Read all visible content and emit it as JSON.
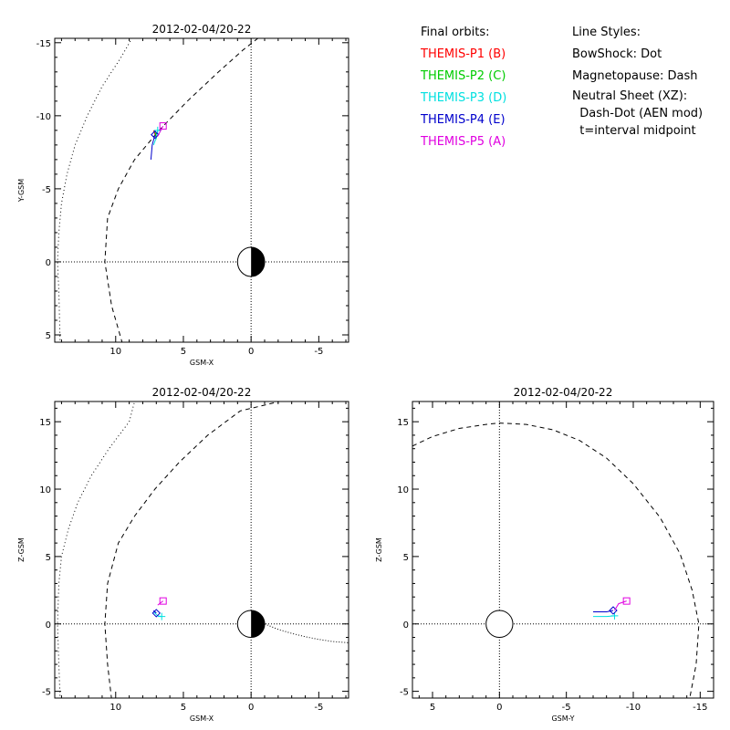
{
  "legend": {
    "orbits_title": "Final orbits:",
    "probes": [
      {
        "label": "THEMIS-P1 (B)",
        "color": "#ff0000"
      },
      {
        "label": "THEMIS-P2 (C)",
        "color": "#00cc00"
      },
      {
        "label": "THEMIS-P3 (D)",
        "color": "#00e0e0"
      },
      {
        "label": "THEMIS-P4 (E)",
        "color": "#0000cc"
      },
      {
        "label": "THEMIS-P5 (A)",
        "color": "#e000e0"
      }
    ],
    "styles_title": "Line Styles:",
    "styles": [
      "BowShock: Dot",
      "Magnetopause: Dash",
      "Neutral Sheet (XZ):",
      "  Dash-Dot (AEN mod)",
      "  t=interval midpoint"
    ]
  },
  "chart_data": [
    {
      "id": "xy",
      "type": "line",
      "title": "2012-02-04/20-22",
      "xlabel": "GSM-X",
      "ylabel": "Y-GSM",
      "xlim": [
        14.5,
        -7.2
      ],
      "ylim": [
        5.5,
        -15.3
      ],
      "xticks": [
        10,
        5,
        0,
        -5
      ],
      "yticks": [
        5,
        0,
        -5,
        -10,
        -15
      ],
      "bow_shock": [
        [
          14.1,
          5.6
        ],
        [
          14.2,
          2
        ],
        [
          14.3,
          0
        ],
        [
          14.2,
          -2
        ],
        [
          14.0,
          -4
        ],
        [
          13.6,
          -6
        ],
        [
          13.0,
          -8
        ],
        [
          12.1,
          -10
        ],
        [
          11.0,
          -12
        ],
        [
          9.6,
          -14
        ],
        [
          8.8,
          -15.3
        ]
      ],
      "magnetopause": [
        [
          9.5,
          5.6
        ],
        [
          10.3,
          3
        ],
        [
          10.8,
          0
        ],
        [
          10.6,
          -3
        ],
        [
          9.8,
          -5
        ],
        [
          8.6,
          -7
        ],
        [
          6.8,
          -9
        ],
        [
          4.7,
          -11
        ],
        [
          2.4,
          -13
        ],
        [
          0.6,
          -14.5
        ],
        [
          -0.5,
          -15.3
        ]
      ],
      "earth_radius": 1,
      "series": [
        {
          "name": "THEMIS-P1 (B)",
          "color": "#ff0000",
          "points": [
            [
              7.0,
              -8.5
            ],
            [
              7.2,
              -9.0
            ]
          ],
          "marker": "none"
        },
        {
          "name": "THEMIS-P2 (C)",
          "color": "#00cc00",
          "points": [
            [
              7.0,
              -8.4
            ],
            [
              7.1,
              -9.0
            ]
          ],
          "marker": "none"
        },
        {
          "name": "THEMIS-P3 (D)",
          "color": "#00e0e0",
          "points": [
            [
              7.2,
              -8.0
            ],
            [
              7.0,
              -8.5
            ],
            [
              6.9,
              -9.0
            ]
          ],
          "marker": "cross"
        },
        {
          "name": "THEMIS-P4 (E)",
          "color": "#0000cc",
          "points": [
            [
              7.4,
              -7.0
            ],
            [
              7.3,
              -8.0
            ],
            [
              7.1,
              -8.7
            ]
          ],
          "marker": "diamond"
        },
        {
          "name": "THEMIS-P5 (A)",
          "color": "#e000e0",
          "points": [
            [
              6.9,
              -8.6
            ],
            [
              6.5,
              -9.3
            ]
          ],
          "marker": "square"
        }
      ]
    },
    {
      "id": "xz",
      "type": "line",
      "title": "2012-02-04/20-22",
      "xlabel": "GSM-X",
      "ylabel": "Z-GSM",
      "xlim": [
        14.5,
        -7.2
      ],
      "ylim": [
        -5.5,
        16.5
      ],
      "xticks": [
        10,
        5,
        0,
        -5
      ],
      "yticks": [
        -5,
        0,
        5,
        10,
        15
      ],
      "bow_shock": [
        [
          14.1,
          -5.6
        ],
        [
          14.2,
          -3
        ],
        [
          14.3,
          0
        ],
        [
          14.2,
          3
        ],
        [
          14.0,
          5
        ],
        [
          13.5,
          7
        ],
        [
          12.8,
          9
        ],
        [
          11.8,
          11
        ],
        [
          10.5,
          13
        ],
        [
          9.0,
          15
        ],
        [
          8.6,
          16.5
        ]
      ],
      "magnetopause": [
        [
          10.3,
          -5.6
        ],
        [
          10.6,
          -3
        ],
        [
          10.8,
          0
        ],
        [
          10.6,
          3
        ],
        [
          9.8,
          6
        ],
        [
          8.6,
          8
        ],
        [
          7.1,
          10
        ],
        [
          5.3,
          12
        ],
        [
          3.2,
          14
        ],
        [
          0.8,
          15.8
        ],
        [
          -2.1,
          16.5
        ]
      ],
      "neutral_sheet": [
        [
          -1.0,
          0.0
        ],
        [
          -2,
          -0.4
        ],
        [
          -3,
          -0.7
        ],
        [
          -4,
          -0.95
        ],
        [
          -5,
          -1.15
        ],
        [
          -6,
          -1.3
        ],
        [
          -7.2,
          -1.4
        ]
      ],
      "earth_radius": 1,
      "series": [
        {
          "name": "THEMIS-P3 (D)",
          "color": "#00e0e0",
          "points": [
            [
              7.2,
              0.9
            ],
            [
              6.9,
              0.6
            ],
            [
              6.6,
              0.55
            ]
          ],
          "marker": "cross"
        },
        {
          "name": "THEMIS-P4 (E)",
          "color": "#0000cc",
          "points": [
            [
              7.2,
              1.0
            ],
            [
              7.0,
              0.8
            ]
          ],
          "marker": "diamond"
        },
        {
          "name": "THEMIS-P5 (A)",
          "color": "#e000e0",
          "points": [
            [
              6.9,
              1.4
            ],
            [
              6.5,
              1.7
            ]
          ],
          "marker": "square"
        }
      ]
    },
    {
      "id": "yz",
      "type": "line",
      "title": "2012-02-04/20-22",
      "xlabel": "GSM-Y",
      "ylabel": "Z-GSM",
      "xlim": [
        6.5,
        -16.0
      ],
      "ylim": [
        -5.5,
        16.5
      ],
      "xticks": [
        5,
        0,
        -5,
        -10,
        -15
      ],
      "yticks": [
        -5,
        0,
        5,
        10,
        15
      ],
      "magnetopause_yz": [
        [
          6.5,
          13.2
        ],
        [
          5,
          13.9
        ],
        [
          3,
          14.5
        ],
        [
          1,
          14.8
        ],
        [
          0,
          14.9
        ],
        [
          -2,
          14.8
        ],
        [
          -4,
          14.4
        ],
        [
          -6,
          13.6
        ],
        [
          -8,
          12.3
        ],
        [
          -10,
          10.4
        ],
        [
          -12,
          7.9
        ],
        [
          -13.5,
          5.2
        ],
        [
          -14.4,
          2.5
        ],
        [
          -14.9,
          0
        ],
        [
          -14.7,
          -3
        ],
        [
          -14.2,
          -5.6
        ]
      ],
      "earth_radius": 1,
      "series": [
        {
          "name": "THEMIS-P3 (D)",
          "color": "#00e0e0",
          "points": [
            [
              -7,
              0.55
            ],
            [
              -8,
              0.55
            ],
            [
              -8.6,
              0.6
            ]
          ],
          "marker": "cross"
        },
        {
          "name": "THEMIS-P4 (E)",
          "color": "#0000cc",
          "points": [
            [
              -7,
              0.9
            ],
            [
              -8,
              0.9
            ],
            [
              -8.5,
              1.0
            ]
          ],
          "marker": "diamond"
        },
        {
          "name": "THEMIS-P5 (A)",
          "color": "#e000e0",
          "points": [
            [
              -8.6,
              1.0
            ],
            [
              -8.9,
              1.5
            ],
            [
              -9.5,
              1.7
            ]
          ],
          "marker": "square"
        }
      ]
    }
  ]
}
